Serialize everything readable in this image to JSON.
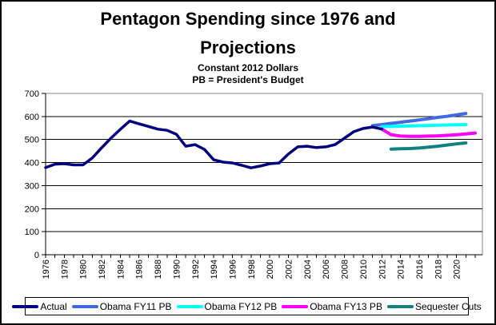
{
  "chart_data": {
    "type": "line",
    "title_lines": [
      "Pentagon Spending since 1976 and",
      "Projections"
    ],
    "subtitle_lines": [
      "Constant 2012 Dollars",
      "PB = President's Budget"
    ],
    "xlabel": "",
    "ylabel": "",
    "ylim": [
      0,
      700
    ],
    "yticks": [
      0,
      100,
      200,
      300,
      400,
      500,
      600,
      700
    ],
    "x_range": [
      1976,
      2022
    ],
    "xtick_labels": [
      "1976",
      "1978",
      "1980",
      "1982",
      "1984",
      "1986",
      "1988",
      "1990",
      "1992",
      "1994",
      "1996",
      "1998",
      "2000",
      "2002",
      "2004",
      "2006",
      "2008",
      "2010",
      "2012",
      "2014",
      "2016",
      "2018",
      "2020"
    ],
    "grid": "horizontal",
    "legend_position": "bottom",
    "plot_border_color": "#848284",
    "gridline_color": "#000000",
    "series": [
      {
        "name": "Actual",
        "color": "#000080",
        "start_year": 1976,
        "values": [
          378,
          393,
          395,
          390,
          390,
          420,
          464,
          506,
          544,
          580,
          568,
          557,
          545,
          540,
          523,
          471,
          478,
          457,
          412,
          402,
          398,
          388,
          377,
          385,
          395,
          398,
          437,
          468,
          471,
          465,
          468,
          478,
          506,
          534,
          548,
          554,
          545
        ]
      },
      {
        "name": "Obama FY11 PB",
        "color": "#4169E1",
        "start_year": 2011,
        "values": [
          560,
          565,
          570,
          575,
          580,
          585,
          590,
          596,
          601,
          607,
          613
        ]
      },
      {
        "name": "Obama FY12 PB",
        "color": "#00FFFF",
        "start_year": 2012,
        "values": [
          556,
          557,
          558,
          559,
          560,
          561,
          562,
          563,
          564,
          565
        ]
      },
      {
        "name": "Obama FY13 PB",
        "color": "#FF00FF",
        "start_year": 2012,
        "values": [
          545,
          521,
          515,
          514,
          514,
          515,
          516,
          518,
          521,
          524,
          528
        ]
      },
      {
        "name": "Sequester Cuts",
        "color": "#118080",
        "start_year": 2013,
        "values": [
          458,
          460,
          461,
          463,
          467,
          471,
          476,
          481,
          485
        ]
      }
    ]
  }
}
